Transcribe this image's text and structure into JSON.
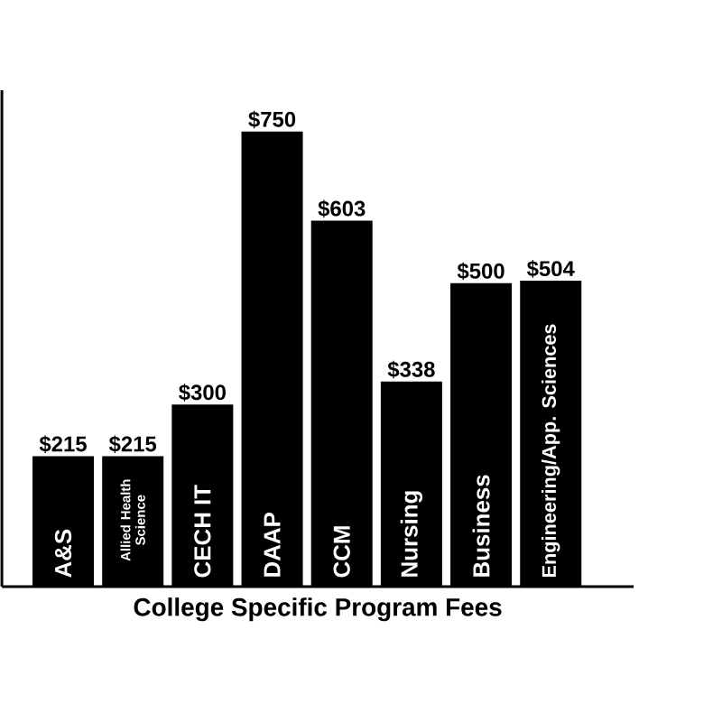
{
  "chart_data": {
    "type": "bar",
    "xlabel": "College Specific Program Fees",
    "categories": [
      "A&S",
      "Allied Health Science",
      "CECH IT",
      "DAAP",
      "CCM",
      "Nursing",
      "Business",
      "Engineering/App. Sciences"
    ],
    "values": [
      215,
      215,
      300,
      750,
      603,
      338,
      500,
      504
    ],
    "value_labels": [
      "$215",
      "$215",
      "$300",
      "$750",
      "$603",
      "$338",
      "$500",
      "$504"
    ],
    "color": "#000000",
    "ylim": [
      0,
      818
    ]
  }
}
